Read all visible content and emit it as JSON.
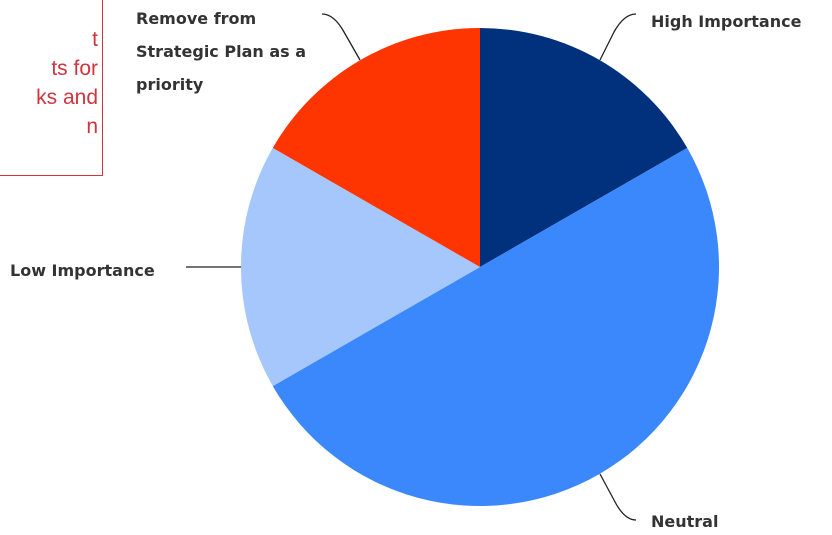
{
  "note": {
    "lines": [
      "t",
      "ts for",
      "ks and",
      "n"
    ],
    "color": "#d0343f"
  },
  "chart_data": {
    "type": "pie",
    "start_angle_deg": 0,
    "direction": "clockwise",
    "slices": [
      {
        "label": "High Importance",
        "value": 16.7,
        "color": "#01307c"
      },
      {
        "label": "Neutral",
        "value": 50.0,
        "color": "#3b88fc"
      },
      {
        "label": "Low Importance",
        "value": 16.6,
        "color": "#a6c7fc"
      },
      {
        "label": "Remove from Strategic Plan as a priority",
        "value": 16.7,
        "color": "#fe3401"
      }
    ],
    "legend": "none",
    "labels": "outside-with-leader-lines"
  }
}
